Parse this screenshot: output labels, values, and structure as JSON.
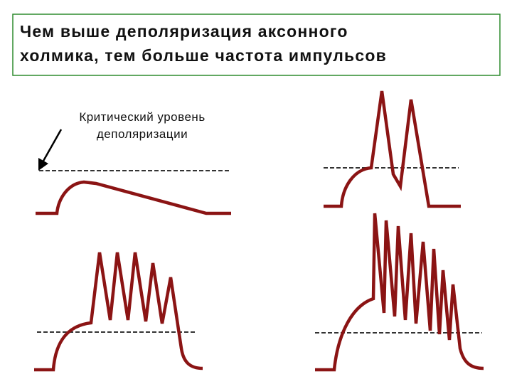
{
  "header": {
    "title_lines": [
      "Чем выше деполяризация аксонного",
      "холмика, тем больше частота импульсов"
    ]
  },
  "annotation": {
    "label_lines": [
      "Критический уровень",
      "деполяризации"
    ]
  }
}
